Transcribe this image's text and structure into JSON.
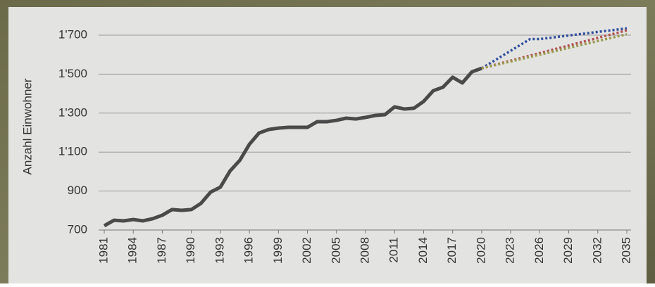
{
  "chart_data": {
    "type": "line",
    "ylabel": "Anzahl Einwohner",
    "xlim": [
      1981,
      2035
    ],
    "xticks": [
      1981,
      1984,
      1987,
      1990,
      1993,
      1996,
      1999,
      2002,
      2005,
      2008,
      2011,
      2014,
      2017,
      2020,
      2023,
      2026,
      2029,
      2032,
      2035
    ],
    "ylim": [
      700,
      1700
    ],
    "yticks": [
      700,
      900,
      {
        "value": 1100,
        "label": "1'100"
      },
      {
        "value": 1300,
        "label": "1'300"
      },
      {
        "value": 1500,
        "label": "1'500"
      },
      {
        "value": 1700,
        "label": "1'700"
      }
    ],
    "grid": true,
    "series": [
      {
        "color": "#4a4a4a",
        "style": "solid",
        "x": [
          1981,
          1982,
          1983,
          1984,
          1985,
          1986,
          1987,
          1988,
          1989,
          1990,
          1991,
          1992,
          1993,
          1994,
          1995,
          1996,
          1997,
          1998,
          1999,
          2000,
          2001,
          2002,
          2003,
          2004,
          2005,
          2006,
          2007,
          2008,
          2009,
          2010,
          2011,
          2012,
          2013,
          2014,
          2015,
          2016,
          2017,
          2018,
          2019,
          2020
        ],
        "values": [
          722,
          750,
          747,
          754,
          747,
          758,
          776,
          805,
          801,
          805,
          837,
          895,
          920,
          1003,
          1057,
          1140,
          1198,
          1216,
          1223,
          1227,
          1227,
          1227,
          1256,
          1256,
          1263,
          1274,
          1270,
          1278,
          1288,
          1292,
          1332,
          1321,
          1325,
          1360,
          1415,
          1433,
          1484,
          1455,
          1512,
          1530
        ]
      },
      {
        "color": "#2f4f9f",
        "style": "dotted",
        "x": [
          2020,
          2025,
          2026,
          2035
        ],
        "values": [
          1530,
          1680,
          1680,
          1735
        ]
      },
      {
        "color": "#b05050",
        "style": "dotted",
        "x": [
          2020,
          2035
        ],
        "values": [
          1530,
          1725
        ]
      },
      {
        "color": "#9a9a50",
        "style": "dotted",
        "x": [
          2020,
          2035
        ],
        "values": [
          1530,
          1705
        ]
      }
    ]
  }
}
